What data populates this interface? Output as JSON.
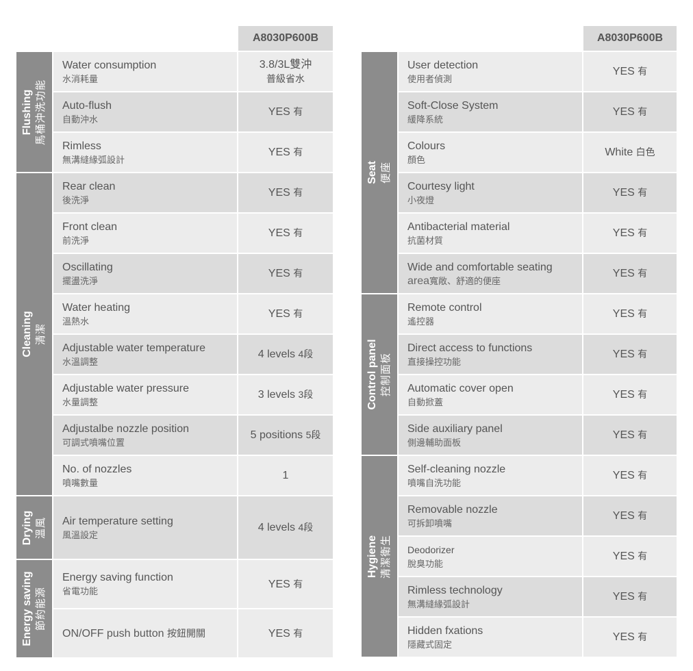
{
  "model": "A8030P600B",
  "left": {
    "groups": {
      "flushing": {
        "en": "Flushing",
        "zh": "馬桶沖洗功能"
      },
      "cleaning": {
        "en": "Cleaning",
        "zh": "清潔"
      },
      "drying": {
        "en": "Drying",
        "zh": "溫風"
      },
      "energy": {
        "en": "Energy saving",
        "zh": "節約能源"
      }
    },
    "rows": [
      {
        "en": "Water consumption",
        "zh": "水消耗量",
        "value": "3.8/3L雙沖",
        "value2": "普級省水"
      },
      {
        "en": "Auto-flush",
        "zh": "自動沖水",
        "value": "YES",
        "value_zh": "有"
      },
      {
        "en": "Rimless",
        "zh": "無溝縫緣弧設計",
        "value": "YES",
        "value_zh": "有"
      },
      {
        "en": "Rear clean",
        "zh": "後洗淨",
        "value": "YES",
        "value_zh": "有"
      },
      {
        "en": "Front clean",
        "zh": "前洗淨",
        "value": "YES",
        "value_zh": "有"
      },
      {
        "en": "Oscillating",
        "zh": "擺盪洗淨",
        "value": "YES",
        "value_zh": "有"
      },
      {
        "en": "Water heating",
        "zh": "溫熱水",
        "value": "YES",
        "value_zh": "有"
      },
      {
        "en": "Adjustable water temperature",
        "zh": "水溫調整",
        "value": "4 levels",
        "value_zh": "4段"
      },
      {
        "en": "Adjustable water pressure",
        "zh": "水量調整",
        "value": "3 levels",
        "value_zh": "3段"
      },
      {
        "en": "Adjustalbe nozzle position",
        "zh": "可調式噴嘴位置",
        "value": "5 positions",
        "value_zh": "5段"
      },
      {
        "en": "No. of nozzles",
        "zh": "噴嘴數量",
        "value": "1"
      },
      {
        "en": "Air temperature setting",
        "zh": "風溫設定",
        "value": "4 levels",
        "value_zh": "4段"
      },
      {
        "en": "Energy saving function",
        "zh": "省電功能",
        "value": "YES",
        "value_zh": "有"
      },
      {
        "en": "ON/OFF push button",
        "zh": "按鈕開關",
        "value": "YES",
        "value_zh": "有"
      }
    ]
  },
  "right": {
    "groups": {
      "seat": {
        "en": "Seat",
        "zh": "便座"
      },
      "control": {
        "en": "Control panel",
        "zh": "控制面板"
      },
      "hygiene": {
        "en": "Hygiene",
        "zh": "清潔衛生"
      }
    },
    "rows": [
      {
        "en": "User detection",
        "zh": "使用者偵測",
        "value": "YES",
        "value_zh": "有"
      },
      {
        "en": "Soft-Close System",
        "zh": "緩降系統",
        "value": "YES",
        "value_zh": "有"
      },
      {
        "en": "Colours",
        "zh": "顏色",
        "value": "White",
        "value_zh": "白色"
      },
      {
        "en": "Courtesy light",
        "zh": "小夜燈",
        "value": "YES",
        "value_zh": "有"
      },
      {
        "en": "Antibacterial material",
        "zh": "抗菌材質",
        "value": "YES",
        "value_zh": "有"
      },
      {
        "en": "Wide and comfortable seating",
        "en2": "area",
        "zh": "寬敞、舒適的便座",
        "value": "YES",
        "value_zh": "有"
      },
      {
        "en": "Remote control",
        "zh": "遙控器",
        "value": "YES",
        "value_zh": "有"
      },
      {
        "en": "Direct access to functions",
        "zh": "直接操控功能",
        "value": "YES",
        "value_zh": "有"
      },
      {
        "en": "Automatic cover open",
        "zh": "自動掀蓋",
        "value": "YES",
        "value_zh": "有"
      },
      {
        "en": "Side auxiliary panel",
        "zh": "側邊輔助面板",
        "value": "YES",
        "value_zh": "有"
      },
      {
        "en": "Self-cleaning nozzle",
        "zh": "噴嘴自洗功能",
        "value": "YES",
        "value_zh": "有"
      },
      {
        "en": "Removable nozzle",
        "zh": "可拆卸噴嘴",
        "value": "YES",
        "value_zh": "有"
      },
      {
        "en": "Deodorizer",
        "zh": "脫臭功能",
        "value": "YES",
        "value_zh": "有"
      },
      {
        "en": "Rimless technology",
        "zh": "無溝縫緣弧設計",
        "value": "YES",
        "value_zh": "有"
      },
      {
        "en": "Hidden fxations",
        "zh": "隱藏式固定",
        "value": "YES",
        "value_zh": "有"
      }
    ]
  }
}
